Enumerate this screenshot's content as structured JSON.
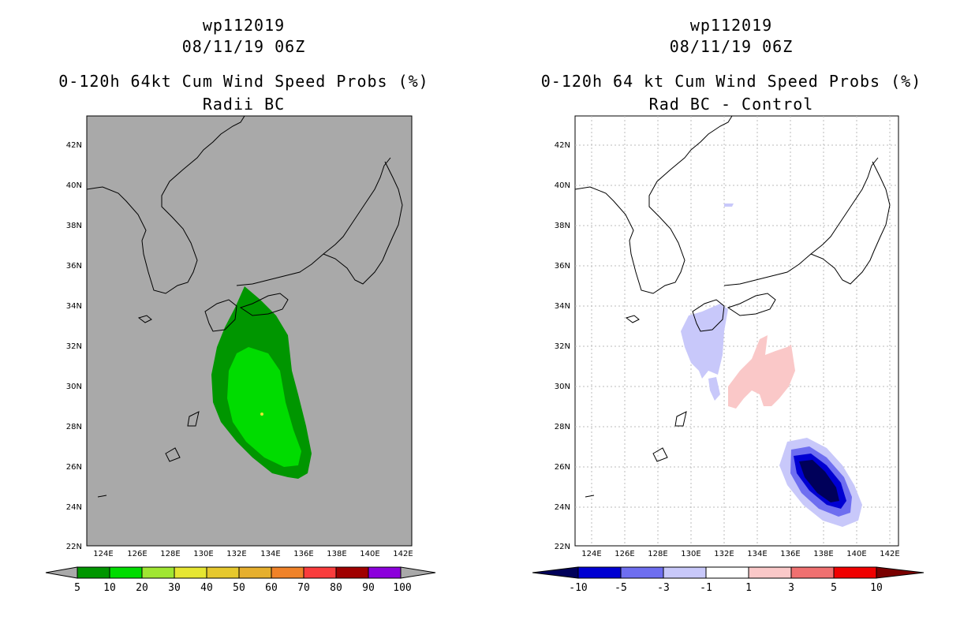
{
  "panels": [
    {
      "storm_id": "wp112019",
      "datetime": "08/11/19 06Z",
      "title": "0-120h 64kt Cum Wind Speed Probs (%)",
      "subtitle": "Radii BC",
      "colorbar_labels": [
        "5",
        "10",
        "20",
        "30",
        "40",
        "50",
        "60",
        "70",
        "80",
        "90",
        "100"
      ],
      "colorbar_colors": [
        "#009600",
        "#00dc00",
        "#a0e632",
        "#e6e632",
        "#e6c82d",
        "#e6af2d",
        "#f08228",
        "#fa3c3c",
        "#a00000",
        "#8c00dc",
        "#aaaaaa"
      ],
      "background": "#a9a9a9"
    },
    {
      "storm_id": "wp112019",
      "datetime": "08/11/19 06Z",
      "title": "0-120h 64 kt Cum Wind Speed Probs (%)",
      "subtitle": "Rad BC - Control",
      "colorbar_labels": [
        "-10",
        "-5",
        "-3",
        "-1",
        "1",
        "3",
        "5",
        "10"
      ],
      "colorbar_colors": [
        "#0000d2",
        "#6e6ef0",
        "#c8c8fa",
        "#ffffff",
        "#fac8c8",
        "#f07070",
        "#f00000",
        "#7a0000"
      ],
      "background": "#ffffff"
    }
  ],
  "axes": {
    "lat_labels": [
      "42N",
      "40N",
      "38N",
      "36N",
      "34N",
      "32N",
      "30N",
      "28N",
      "26N",
      "24N",
      "22N"
    ],
    "lon_labels": [
      "124E",
      "126E",
      "128E",
      "130E",
      "132E",
      "134E",
      "136E",
      "138E",
      "140E",
      "142E"
    ]
  }
}
